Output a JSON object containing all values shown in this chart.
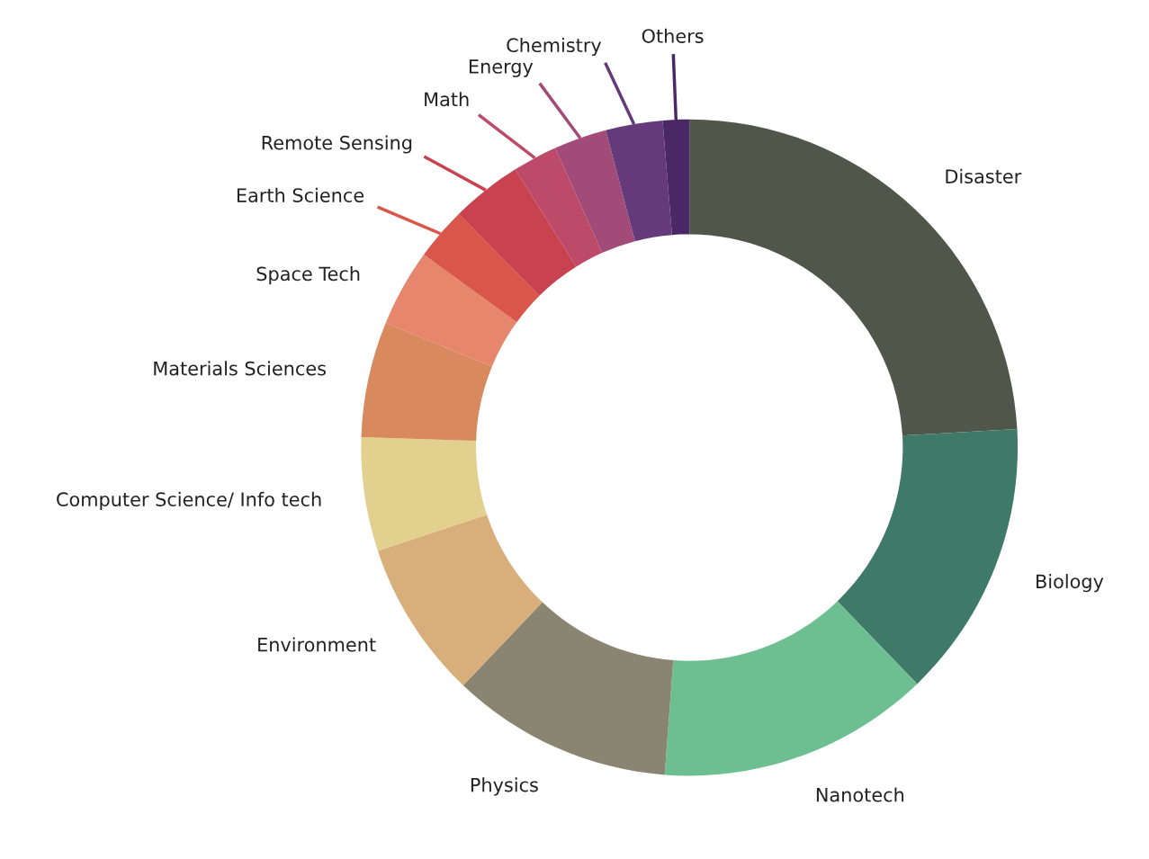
{
  "chart_data": {
    "type": "donut",
    "categories": [
      "Disaster",
      "Biology",
      "Nanotech",
      "Physics",
      "Environment",
      "Computer Science/ Info tech",
      "Materials Sciences",
      "Space Tech",
      "Earth Science",
      "Remote Sensing",
      "Math",
      "Energy",
      "Chemistry",
      "Others"
    ],
    "values": [
      24.1,
      13.7,
      13.4,
      10.9,
      7.8,
      5.6,
      5.7,
      3.8,
      2.6,
      3.5,
      2.2,
      2.6,
      2.8,
      1.3
    ],
    "colors": [
      "#50574a",
      "#3f7a68",
      "#6dbe90",
      "#8a8570",
      "#d8ae7a",
      "#e2d08e",
      "#d88a5e",
      "#e6866c",
      "#d9574a",
      "#c8424f",
      "#bc4a68",
      "#a24a78",
      "#643a7a",
      "#4a2866"
    ]
  }
}
